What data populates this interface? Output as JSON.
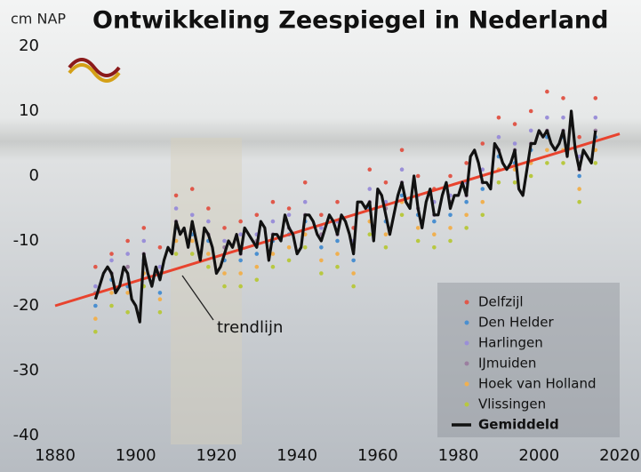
{
  "chart_data": {
    "type": "line",
    "title": "Ontwikkeling Zeespiegel in Nederland",
    "y_label": "cm NAP",
    "xlim": [
      1880,
      2020
    ],
    "xticks": [
      1880,
      1900,
      1920,
      1940,
      1960,
      1980,
      2000,
      2020
    ],
    "ylim": [
      -40,
      20
    ],
    "yticks": [
      -40,
      -30,
      -20,
      -10,
      0,
      10,
      20
    ],
    "grid": false,
    "legend": "lower right",
    "trend": {
      "x": [
        1880,
        2020
      ],
      "values": [
        -20,
        6.5
      ],
      "color": "#e8432e"
    },
    "annotations": [
      {
        "text": "trendlijn"
      }
    ],
    "series": [
      {
        "name": "Delfzijl",
        "color": "#e0584a",
        "marker": "dot",
        "x": [
          1890,
          1894,
          1898,
          1902,
          1906,
          1910,
          1914,
          1918,
          1922,
          1926,
          1930,
          1934,
          1938,
          1942,
          1946,
          1950,
          1954,
          1958,
          1962,
          1966,
          1970,
          1974,
          1978,
          1982,
          1986,
          1990,
          1994,
          1998,
          2002,
          2006,
          2010,
          2014
        ],
        "values": [
          -14,
          -12,
          -10,
          -8,
          -11,
          -3,
          -2,
          -5,
          -8,
          -7,
          -6,
          -4,
          -5,
          -1,
          -6,
          -4,
          -8,
          1,
          -1,
          4,
          0,
          -2,
          0,
          2,
          5,
          9,
          8,
          10,
          13,
          12,
          6,
          12
        ]
      },
      {
        "name": "Den Helder",
        "color": "#4a8fd0",
        "marker": "dot",
        "x": [
          1890,
          1894,
          1898,
          1902,
          1906,
          1910,
          1914,
          1918,
          1922,
          1926,
          1930,
          1934,
          1938,
          1942,
          1946,
          1950,
          1954,
          1958,
          1962,
          1966,
          1970,
          1974,
          1978,
          1982,
          1986,
          1990,
          1994,
          1998,
          2002,
          2006,
          2010,
          2014
        ],
        "values": [
          -20,
          -16,
          -17,
          -13,
          -18,
          -8,
          -9,
          -10,
          -13,
          -13,
          -12,
          -10,
          -9,
          -7,
          -11,
          -10,
          -13,
          -5,
          -7,
          -3,
          -6,
          -7,
          -6,
          -4,
          -2,
          3,
          2,
          4,
          6,
          6,
          0,
          6
        ]
      },
      {
        "name": "Harlingen",
        "color": "#9a8fd8",
        "marker": "dot",
        "x": [
          1890,
          1894,
          1898,
          1902,
          1906,
          1910,
          1914,
          1918,
          1922,
          1926,
          1930,
          1934,
          1938,
          1942,
          1946,
          1950,
          1954,
          1958,
          1962,
          1966,
          1970,
          1974,
          1978,
          1982,
          1986,
          1990,
          1994,
          1998,
          2002,
          2006,
          2010,
          2014
        ],
        "values": [
          -17,
          -13,
          -12,
          -10,
          -14,
          -5,
          -6,
          -7,
          -10,
          -9,
          -9,
          -7,
          -6,
          -4,
          -8,
          -7,
          -10,
          -2,
          -4,
          1,
          -3,
          -4,
          -3,
          -1,
          1,
          6,
          5,
          7,
          9,
          9,
          3,
          9
        ]
      },
      {
        "name": "IJmuiden",
        "color": "#9b7fa0",
        "marker": "dot",
        "x": [
          1890,
          1894,
          1898,
          1902,
          1906,
          1910,
          1914,
          1918,
          1922,
          1926,
          1930,
          1934,
          1938,
          1942,
          1946,
          1950,
          1954,
          1958,
          1962,
          1966,
          1970,
          1974,
          1978,
          1982,
          1986,
          1990,
          1994,
          1998,
          2002,
          2006,
          2010,
          2014
        ],
        "values": [
          -18,
          -15,
          -14,
          -12,
          -15,
          -7,
          -8,
          -9,
          -11,
          -12,
          -10,
          -9,
          -8,
          -6,
          -9,
          -9,
          -11,
          -4,
          -5,
          -1,
          -5,
          -6,
          -4,
          -3,
          -1,
          4,
          4,
          5,
          7,
          7,
          1,
          7
        ]
      },
      {
        "name": "Hoek van Holland",
        "color": "#f0b050",
        "marker": "dot",
        "x": [
          1890,
          1894,
          1898,
          1902,
          1906,
          1910,
          1914,
          1918,
          1922,
          1926,
          1930,
          1934,
          1938,
          1942,
          1946,
          1950,
          1954,
          1958,
          1962,
          1966,
          1970,
          1974,
          1978,
          1982,
          1986,
          1990,
          1994,
          1998,
          2002,
          2006,
          2010,
          2014
        ],
        "values": [
          -22,
          -18,
          -18,
          -15,
          -19,
          -10,
          -10,
          -12,
          -15,
          -15,
          -14,
          -12,
          -11,
          -9,
          -13,
          -12,
          -15,
          -7,
          -9,
          -4,
          -8,
          -9,
          -8,
          -6,
          -4,
          1,
          1,
          2,
          4,
          4,
          -2,
          4
        ]
      },
      {
        "name": "Vlissingen",
        "color": "#b8c840",
        "marker": "dot",
        "x": [
          1890,
          1894,
          1898,
          1902,
          1906,
          1910,
          1914,
          1918,
          1922,
          1926,
          1930,
          1934,
          1938,
          1942,
          1946,
          1950,
          1954,
          1958,
          1962,
          1966,
          1970,
          1974,
          1978,
          1982,
          1986,
          1990,
          1994,
          1998,
          2002,
          2006,
          2010,
          2014
        ],
        "values": [
          -24,
          -20,
          -21,
          -17,
          -21,
          -12,
          -12,
          -14,
          -17,
          -17,
          -16,
          -14,
          -13,
          -11,
          -15,
          -14,
          -17,
          -9,
          -11,
          -6,
          -10,
          -11,
          -10,
          -8,
          -6,
          -1,
          -1,
          0,
          2,
          2,
          -4,
          2
        ]
      },
      {
        "name": "Gemiddeld",
        "color": "#111111",
        "marker": "line",
        "x": [
          1890,
          1891,
          1892,
          1893,
          1894,
          1895,
          1896,
          1897,
          1898,
          1899,
          1900,
          1901,
          1902,
          1903,
          1904,
          1905,
          1906,
          1907,
          1908,
          1909,
          1910,
          1911,
          1912,
          1913,
          1914,
          1915,
          1916,
          1917,
          1918,
          1919,
          1920,
          1921,
          1922,
          1923,
          1924,
          1925,
          1926,
          1927,
          1928,
          1929,
          1930,
          1931,
          1932,
          1933,
          1934,
          1935,
          1936,
          1937,
          1938,
          1939,
          1940,
          1941,
          1942,
          1943,
          1944,
          1945,
          1946,
          1947,
          1948,
          1949,
          1950,
          1951,
          1952,
          1953,
          1954,
          1955,
          1956,
          1957,
          1958,
          1959,
          1960,
          1961,
          1962,
          1963,
          1964,
          1965,
          1966,
          1967,
          1968,
          1969,
          1970,
          1971,
          1972,
          1973,
          1974,
          1975,
          1976,
          1977,
          1978,
          1979,
          1980,
          1981,
          1982,
          1983,
          1984,
          1985,
          1986,
          1987,
          1988,
          1989,
          1990,
          1991,
          1992,
          1993,
          1994,
          1995,
          1996,
          1997,
          1998,
          1999,
          2000,
          2001,
          2002,
          2003,
          2004,
          2005,
          2006,
          2007,
          2008,
          2009,
          2010,
          2011,
          2012,
          2013,
          2014
        ],
        "values": [
          -19,
          -17,
          -15,
          -14,
          -15,
          -18,
          -17,
          -14,
          -15,
          -19,
          -20,
          -22.5,
          -12,
          -15,
          -17,
          -14,
          -16,
          -13,
          -11,
          -12,
          -7,
          -9,
          -8,
          -11,
          -7,
          -10,
          -13,
          -8,
          -9,
          -11,
          -15,
          -14,
          -12,
          -10,
          -11,
          -9,
          -12,
          -8,
          -9,
          -10,
          -11,
          -7,
          -8,
          -13,
          -9,
          -9,
          -10,
          -6,
          -8,
          -9,
          -12,
          -11,
          -6,
          -6,
          -7,
          -9,
          -10,
          -8,
          -6,
          -7,
          -9,
          -6,
          -7,
          -9,
          -12,
          -4,
          -4,
          -5,
          -4,
          -10,
          -2,
          -3,
          -6,
          -9,
          -6,
          -3,
          -1,
          -4,
          -5,
          0,
          -5,
          -8,
          -4,
          -2,
          -6,
          -6,
          -3,
          -1,
          -5,
          -3,
          -3,
          -1,
          -3,
          3,
          4,
          2,
          -1,
          -1,
          -2,
          5,
          4,
          2,
          1,
          2,
          4,
          -2,
          -3,
          1,
          5,
          5,
          7,
          6,
          7,
          5,
          4,
          5,
          7,
          3,
          10,
          4,
          1,
          4,
          3,
          2,
          7
        ]
      }
    ]
  }
}
